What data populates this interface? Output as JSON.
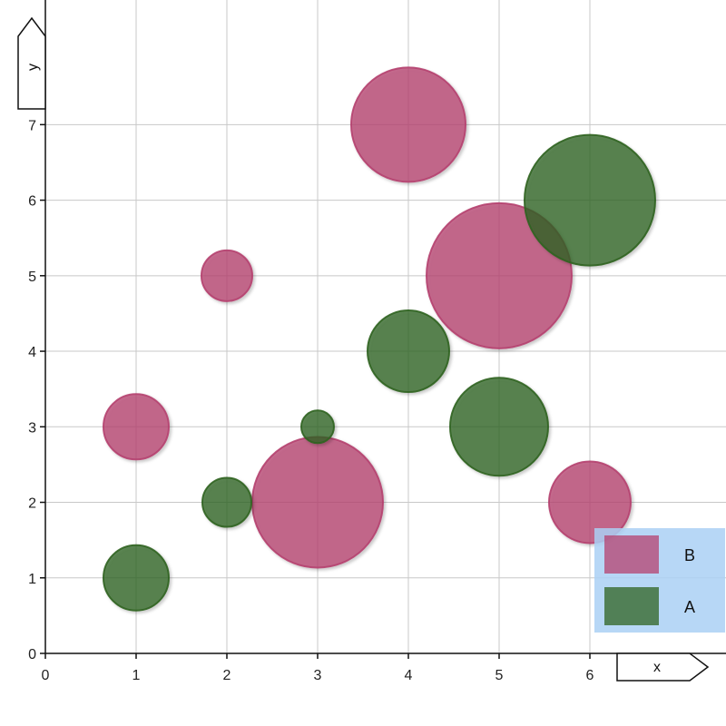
{
  "chart_data": {
    "type": "scatter",
    "subtype": "bubble",
    "xlabel": "x",
    "ylabel": "y",
    "xlim": [
      0,
      7.5
    ],
    "ylim": [
      0,
      8.65
    ],
    "x_ticks": [
      "0",
      "1",
      "2",
      "3",
      "4",
      "5",
      "6"
    ],
    "y_ticks": [
      "0",
      "1",
      "2",
      "3",
      "4",
      "5",
      "6",
      "7"
    ],
    "grid": true,
    "legend_position": "bottom-right",
    "legend_background": "#aad0f5",
    "series": [
      {
        "name": "B",
        "color": "#b5416f",
        "points": [
          {
            "x": 1,
            "y": 3,
            "size": 36
          },
          {
            "x": 2,
            "y": 5,
            "size": 28
          },
          {
            "x": 3,
            "y": 2,
            "size": 72
          },
          {
            "x": 4,
            "y": 7,
            "size": 63
          },
          {
            "x": 5,
            "y": 5,
            "size": 80
          },
          {
            "x": 6,
            "y": 2,
            "size": 45
          }
        ]
      },
      {
        "name": "A",
        "color": "#2f6320",
        "points": [
          {
            "x": 1,
            "y": 1,
            "size": 36
          },
          {
            "x": 2,
            "y": 2,
            "size": 27
          },
          {
            "x": 3,
            "y": 3,
            "size": 18
          },
          {
            "x": 4,
            "y": 4,
            "size": 45
          },
          {
            "x": 5,
            "y": 3,
            "size": 54
          },
          {
            "x": 6,
            "y": 6,
            "size": 72
          }
        ]
      }
    ]
  }
}
